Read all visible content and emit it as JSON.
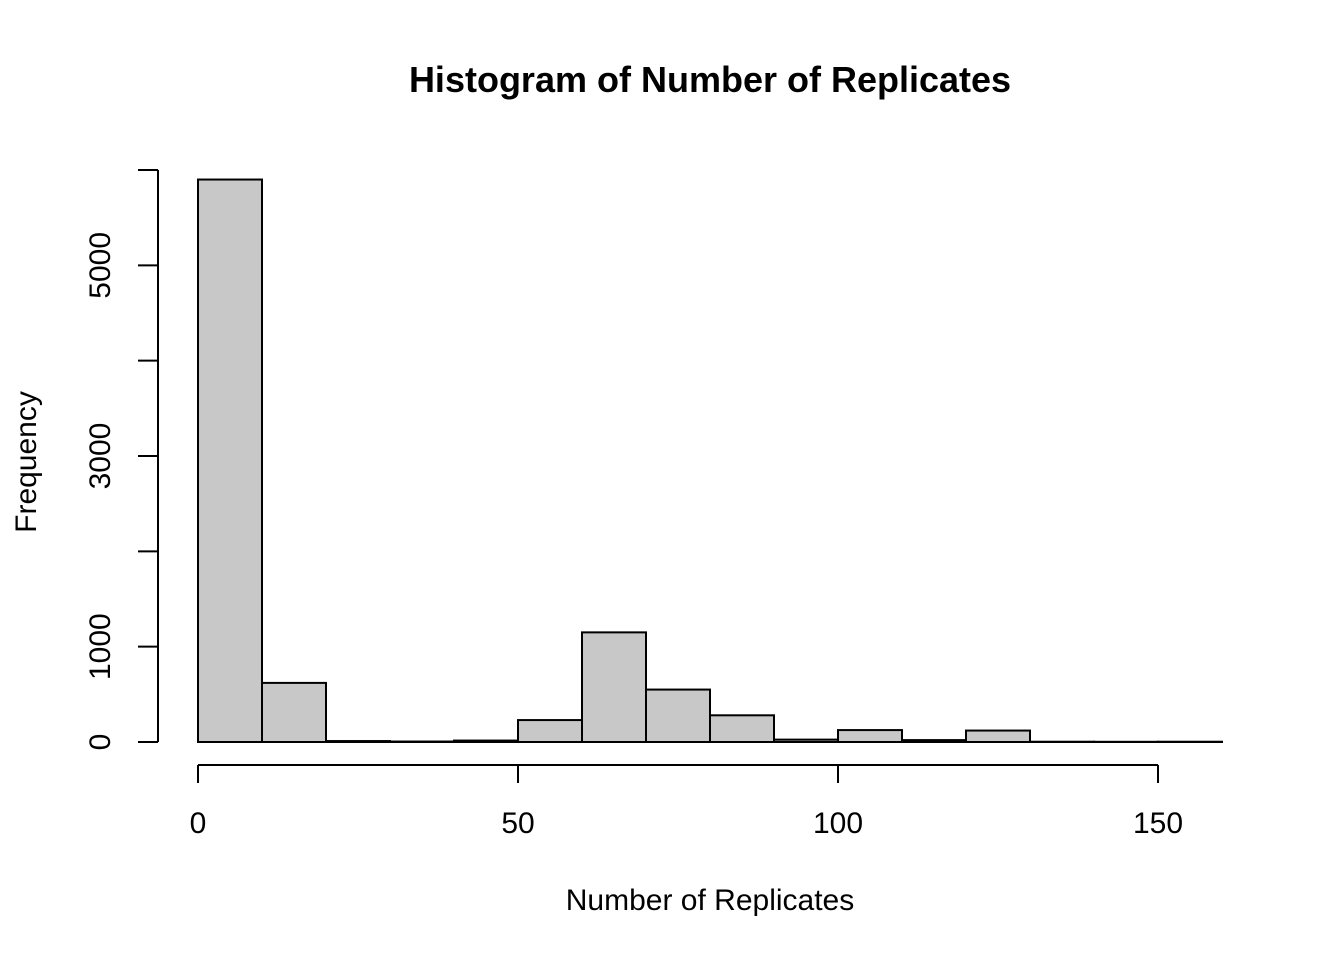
{
  "chart_data": {
    "type": "bar",
    "title": "Histogram of Number of Replicates",
    "xlabel": "Number of Replicates",
    "ylabel": "Frequency",
    "bins": [
      {
        "from": 0,
        "to": 10,
        "count": 5900
      },
      {
        "from": 10,
        "to": 20,
        "count": 620
      },
      {
        "from": 20,
        "to": 30,
        "count": 10
      },
      {
        "from": 30,
        "to": 40,
        "count": 5
      },
      {
        "from": 40,
        "to": 50,
        "count": 15
      },
      {
        "from": 50,
        "to": 60,
        "count": 230
      },
      {
        "from": 60,
        "to": 70,
        "count": 1150
      },
      {
        "from": 70,
        "to": 80,
        "count": 550
      },
      {
        "from": 80,
        "to": 90,
        "count": 280
      },
      {
        "from": 90,
        "to": 100,
        "count": 25
      },
      {
        "from": 100,
        "to": 110,
        "count": 125
      },
      {
        "from": 110,
        "to": 120,
        "count": 20
      },
      {
        "from": 120,
        "to": 130,
        "count": 120
      },
      {
        "from": 130,
        "to": 140,
        "count": 3
      },
      {
        "from": 140,
        "to": 150,
        "count": 2
      },
      {
        "from": 150,
        "to": 160,
        "count": 3
      }
    ],
    "xlim": [
      0,
      160
    ],
    "ylim": [
      0,
      6000
    ],
    "x_ticks": [
      0,
      50,
      100,
      150
    ],
    "x_tick_labels": [
      "0",
      "50",
      "100",
      "150"
    ],
    "y_ticks": [
      0,
      1000,
      2000,
      3000,
      4000,
      5000,
      6000
    ],
    "y_tick_labels": [
      "0",
      "1000",
      "",
      "3000",
      "",
      "5000",
      ""
    ],
    "grid": false,
    "colors": {
      "bar_fill": "#c8c8c8",
      "bar_stroke": "#000000"
    }
  }
}
